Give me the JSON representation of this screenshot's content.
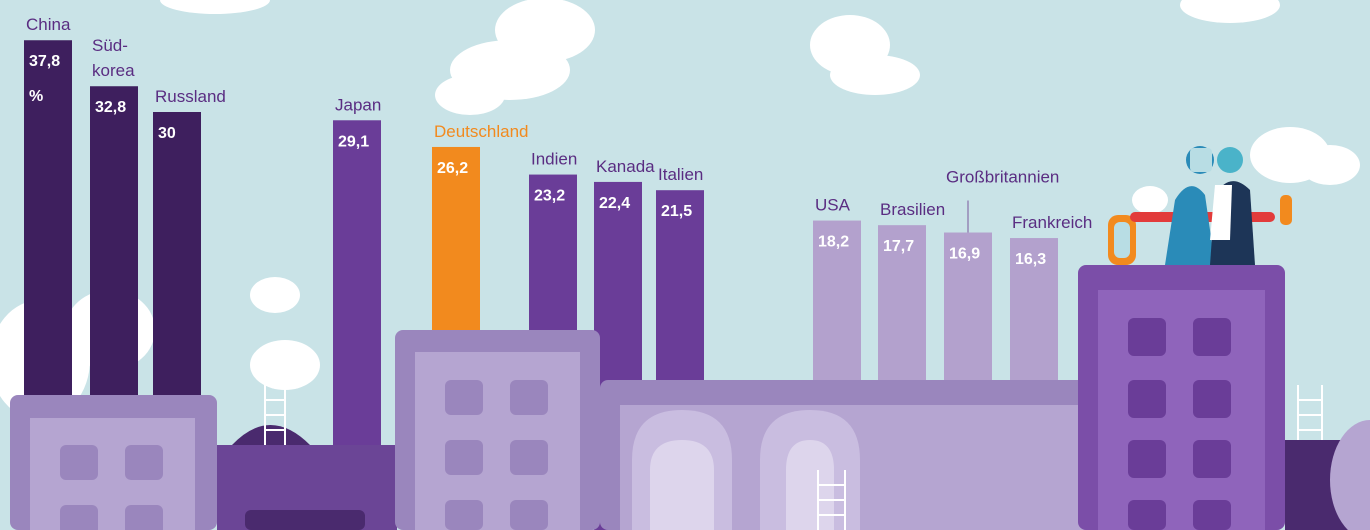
{
  "chart_data": {
    "type": "bar",
    "categories": [
      "China",
      "Süd-\nkorea",
      "Russland",
      "Japan",
      "Deutschland",
      "Indien",
      "Kanada",
      "Italien",
      "USA",
      "Brasilien",
      "Großbritannien",
      "Frankreich"
    ],
    "values": [
      37.8,
      32.8,
      30,
      29.1,
      26.2,
      23.2,
      22.4,
      21.5,
      18.2,
      17.7,
      16.9,
      16.3
    ],
    "value_labels": [
      "37,8\n%",
      "32,8",
      "30",
      "29,1",
      "26,2",
      "23,2",
      "22,4",
      "21,5",
      "18,2",
      "17,7",
      "16,9",
      "16,3"
    ],
    "colors": [
      "#3e1f5e",
      "#3e1f5e",
      "#3e1f5e",
      "#6a3d98",
      "#f28a1e",
      "#6a3d98",
      "#6a3d98",
      "#6a3d98",
      "#b3a1cd",
      "#b3a1cd",
      "#b3a1cd",
      "#b3a1cd"
    ]
  }
}
